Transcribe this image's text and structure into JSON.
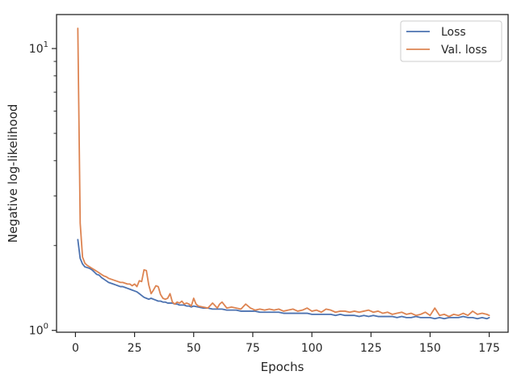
{
  "chart_data": {
    "type": "line",
    "title": "",
    "xlabel": "Epochs",
    "ylabel": "Negative log-likelihood",
    "xlim": [
      -8,
      183
    ],
    "ylim": [
      0.985,
      13.2
    ],
    "yscale": "log",
    "x_ticks": [
      0,
      25,
      50,
      75,
      100,
      125,
      150,
      175
    ],
    "y_ticks": [
      {
        "value": 1,
        "label": "10",
        "exp": "0"
      },
      {
        "value": 10,
        "label": "10",
        "exp": "1"
      }
    ],
    "legend": {
      "position": "top-right"
    },
    "grid": false,
    "colors": {
      "loss": "#4c72b0",
      "val_loss": "#dd8452",
      "axis": "#262626"
    },
    "series": [
      {
        "name": "Loss",
        "color": "#4c72b0",
        "x": [
          1,
          2,
          3,
          4,
          5,
          6,
          7,
          8,
          9,
          10,
          11,
          12,
          13,
          14,
          15,
          16,
          17,
          18,
          19,
          20,
          21,
          22,
          23,
          24,
          25,
          26,
          27,
          28,
          29,
          30,
          31,
          32,
          33,
          34,
          35,
          36,
          37,
          38,
          39,
          40,
          41,
          42,
          43,
          44,
          45,
          46,
          47,
          48,
          49,
          50,
          52,
          54,
          56,
          58,
          60,
          62,
          64,
          66,
          68,
          70,
          72,
          74,
          76,
          78,
          80,
          82,
          84,
          86,
          88,
          90,
          92,
          94,
          96,
          98,
          100,
          102,
          104,
          106,
          108,
          110,
          112,
          114,
          116,
          118,
          120,
          122,
          124,
          126,
          128,
          130,
          132,
          134,
          136,
          138,
          140,
          142,
          144,
          146,
          148,
          150,
          152,
          154,
          156,
          158,
          160,
          162,
          164,
          166,
          168,
          170,
          172,
          174,
          175
        ],
        "values": [
          2.1,
          1.8,
          1.72,
          1.68,
          1.67,
          1.66,
          1.64,
          1.61,
          1.58,
          1.57,
          1.54,
          1.52,
          1.5,
          1.48,
          1.47,
          1.46,
          1.45,
          1.44,
          1.43,
          1.43,
          1.42,
          1.41,
          1.4,
          1.39,
          1.38,
          1.37,
          1.35,
          1.33,
          1.31,
          1.3,
          1.29,
          1.3,
          1.29,
          1.28,
          1.27,
          1.27,
          1.26,
          1.26,
          1.25,
          1.25,
          1.25,
          1.24,
          1.24,
          1.23,
          1.23,
          1.23,
          1.22,
          1.22,
          1.21,
          1.22,
          1.21,
          1.2,
          1.2,
          1.19,
          1.19,
          1.19,
          1.18,
          1.18,
          1.18,
          1.17,
          1.17,
          1.17,
          1.17,
          1.16,
          1.16,
          1.16,
          1.16,
          1.16,
          1.15,
          1.15,
          1.15,
          1.15,
          1.15,
          1.15,
          1.14,
          1.14,
          1.14,
          1.14,
          1.14,
          1.13,
          1.14,
          1.13,
          1.13,
          1.13,
          1.12,
          1.13,
          1.12,
          1.13,
          1.12,
          1.12,
          1.12,
          1.12,
          1.11,
          1.12,
          1.11,
          1.11,
          1.12,
          1.11,
          1.11,
          1.11,
          1.1,
          1.11,
          1.1,
          1.11,
          1.11,
          1.11,
          1.12,
          1.11,
          1.11,
          1.1,
          1.11,
          1.1,
          1.11
        ]
      },
      {
        "name": "Val. loss",
        "color": "#dd8452",
        "x": [
          1,
          2,
          3,
          4,
          5,
          6,
          7,
          8,
          9,
          10,
          11,
          12,
          13,
          14,
          15,
          16,
          17,
          18,
          19,
          20,
          21,
          22,
          23,
          24,
          25,
          26,
          27,
          28,
          29,
          30,
          31,
          32,
          33,
          34,
          35,
          36,
          37,
          38,
          39,
          40,
          41,
          42,
          43,
          44,
          45,
          46,
          47,
          48,
          49,
          50,
          51,
          52,
          54,
          56,
          58,
          60,
          61,
          62,
          64,
          66,
          68,
          70,
          72,
          74,
          76,
          78,
          80,
          82,
          84,
          86,
          88,
          90,
          92,
          94,
          96,
          98,
          100,
          102,
          104,
          106,
          108,
          110,
          112,
          114,
          116,
          118,
          120,
          122,
          124,
          126,
          128,
          130,
          132,
          134,
          136,
          138,
          140,
          142,
          144,
          146,
          148,
          150,
          152,
          154,
          156,
          158,
          160,
          162,
          164,
          166,
          168,
          170,
          172,
          174,
          175
        ],
        "values": [
          11.8,
          2.4,
          1.82,
          1.73,
          1.7,
          1.68,
          1.66,
          1.64,
          1.62,
          1.6,
          1.58,
          1.56,
          1.55,
          1.53,
          1.52,
          1.51,
          1.5,
          1.49,
          1.48,
          1.48,
          1.47,
          1.46,
          1.46,
          1.44,
          1.46,
          1.43,
          1.5,
          1.49,
          1.64,
          1.63,
          1.45,
          1.35,
          1.39,
          1.44,
          1.43,
          1.34,
          1.3,
          1.29,
          1.3,
          1.35,
          1.26,
          1.24,
          1.26,
          1.25,
          1.27,
          1.24,
          1.25,
          1.24,
          1.22,
          1.3,
          1.24,
          1.22,
          1.21,
          1.2,
          1.25,
          1.2,
          1.24,
          1.26,
          1.2,
          1.21,
          1.2,
          1.19,
          1.24,
          1.2,
          1.18,
          1.19,
          1.18,
          1.19,
          1.18,
          1.19,
          1.17,
          1.18,
          1.19,
          1.17,
          1.18,
          1.2,
          1.17,
          1.18,
          1.16,
          1.19,
          1.18,
          1.16,
          1.17,
          1.17,
          1.16,
          1.17,
          1.16,
          1.17,
          1.18,
          1.16,
          1.17,
          1.15,
          1.16,
          1.14,
          1.15,
          1.16,
          1.14,
          1.15,
          1.13,
          1.14,
          1.16,
          1.13,
          1.2,
          1.13,
          1.14,
          1.12,
          1.14,
          1.13,
          1.15,
          1.13,
          1.17,
          1.14,
          1.15,
          1.14,
          1.13
        ]
      }
    ]
  }
}
